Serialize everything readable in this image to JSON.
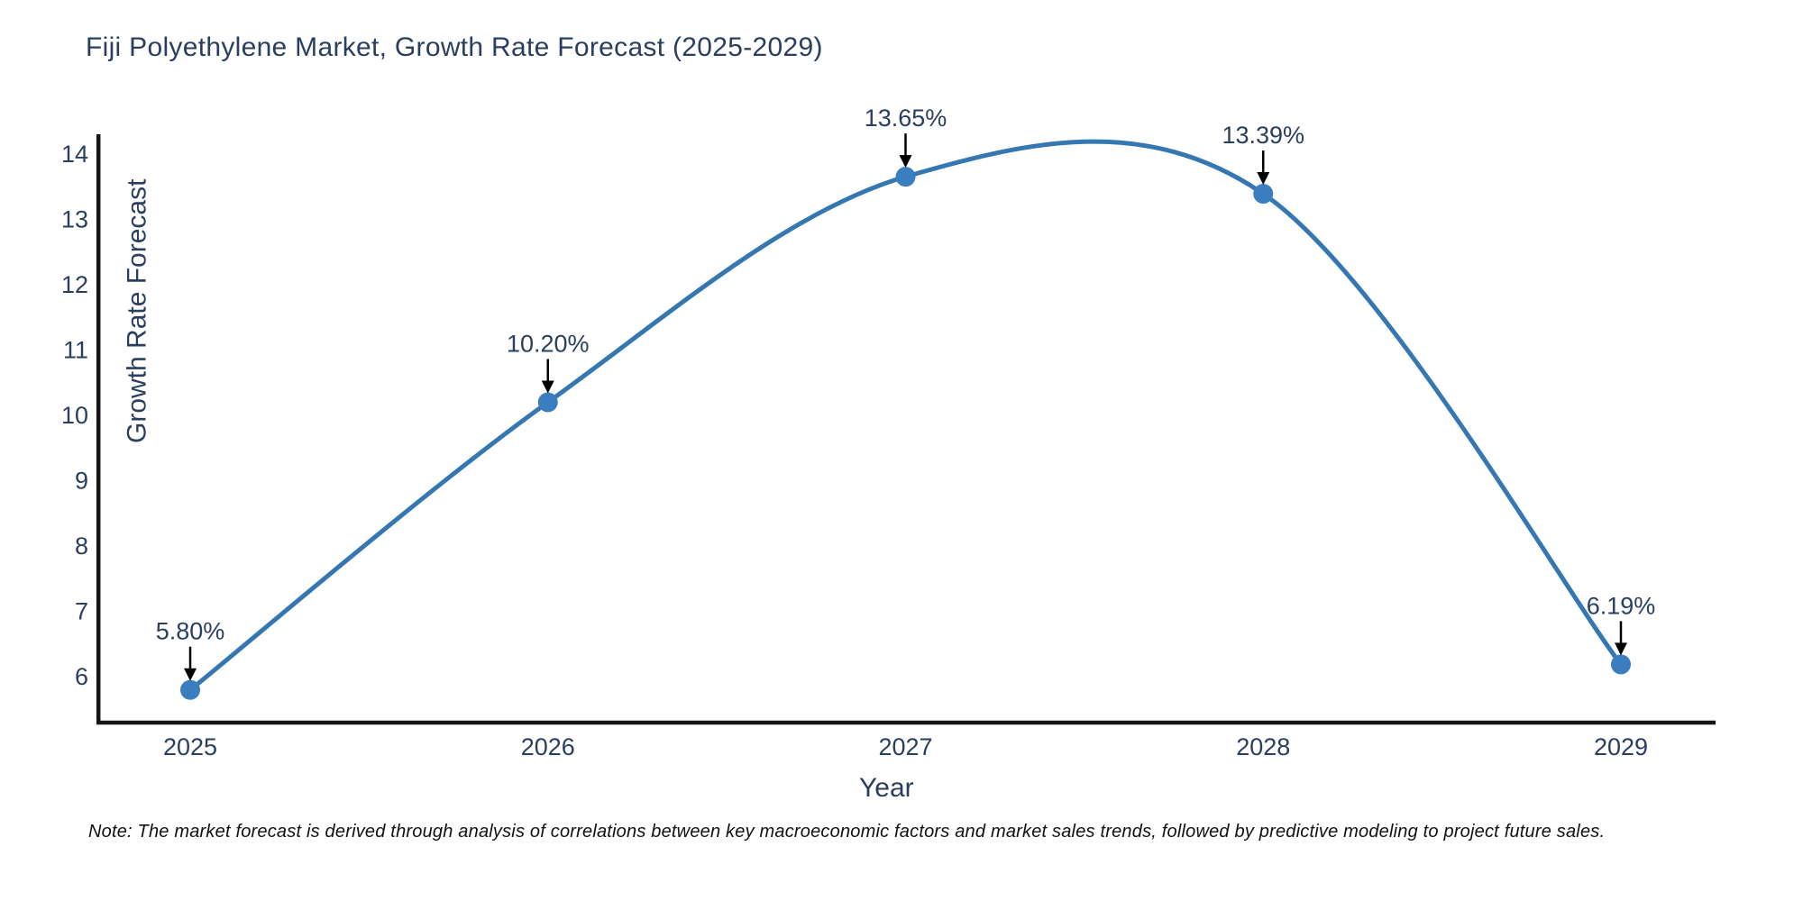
{
  "chart": {
    "title": "Fiji Polyethylene Market, Growth Rate Forecast (2025-2029)",
    "note": "Note: The market forecast is derived through analysis of correlations between key macroeconomic factors and market sales trends, followed by predictive modeling to project future sales."
  },
  "chart_data": {
    "type": "line",
    "title": "Fiji Polyethylene Market, Growth Rate Forecast (2025-2029)",
    "xlabel": "Year",
    "ylabel": "Growth Rate Forecast",
    "categories": [
      "2025",
      "2026",
      "2027",
      "2028",
      "2029"
    ],
    "series": [
      {
        "name": "Growth Rate Forecast",
        "values": [
          5.8,
          10.2,
          13.65,
          13.39,
          6.19
        ]
      }
    ],
    "point_labels": [
      "5.80%",
      "10.20%",
      "13.65%",
      "13.39%",
      "6.19%"
    ],
    "yticks": [
      6,
      7,
      8,
      9,
      10,
      11,
      12,
      13,
      14
    ],
    "ylim": [
      5.3,
      14.3
    ],
    "line_shape": "spline",
    "grid": false,
    "legend_position": "none",
    "colors": {
      "line": "#3577b1",
      "marker": "#3a7ebf",
      "axis": "#151515",
      "text": "#2a3f5f",
      "arrow": "#000000",
      "note": "#111111",
      "background": "#ffffff"
    }
  }
}
